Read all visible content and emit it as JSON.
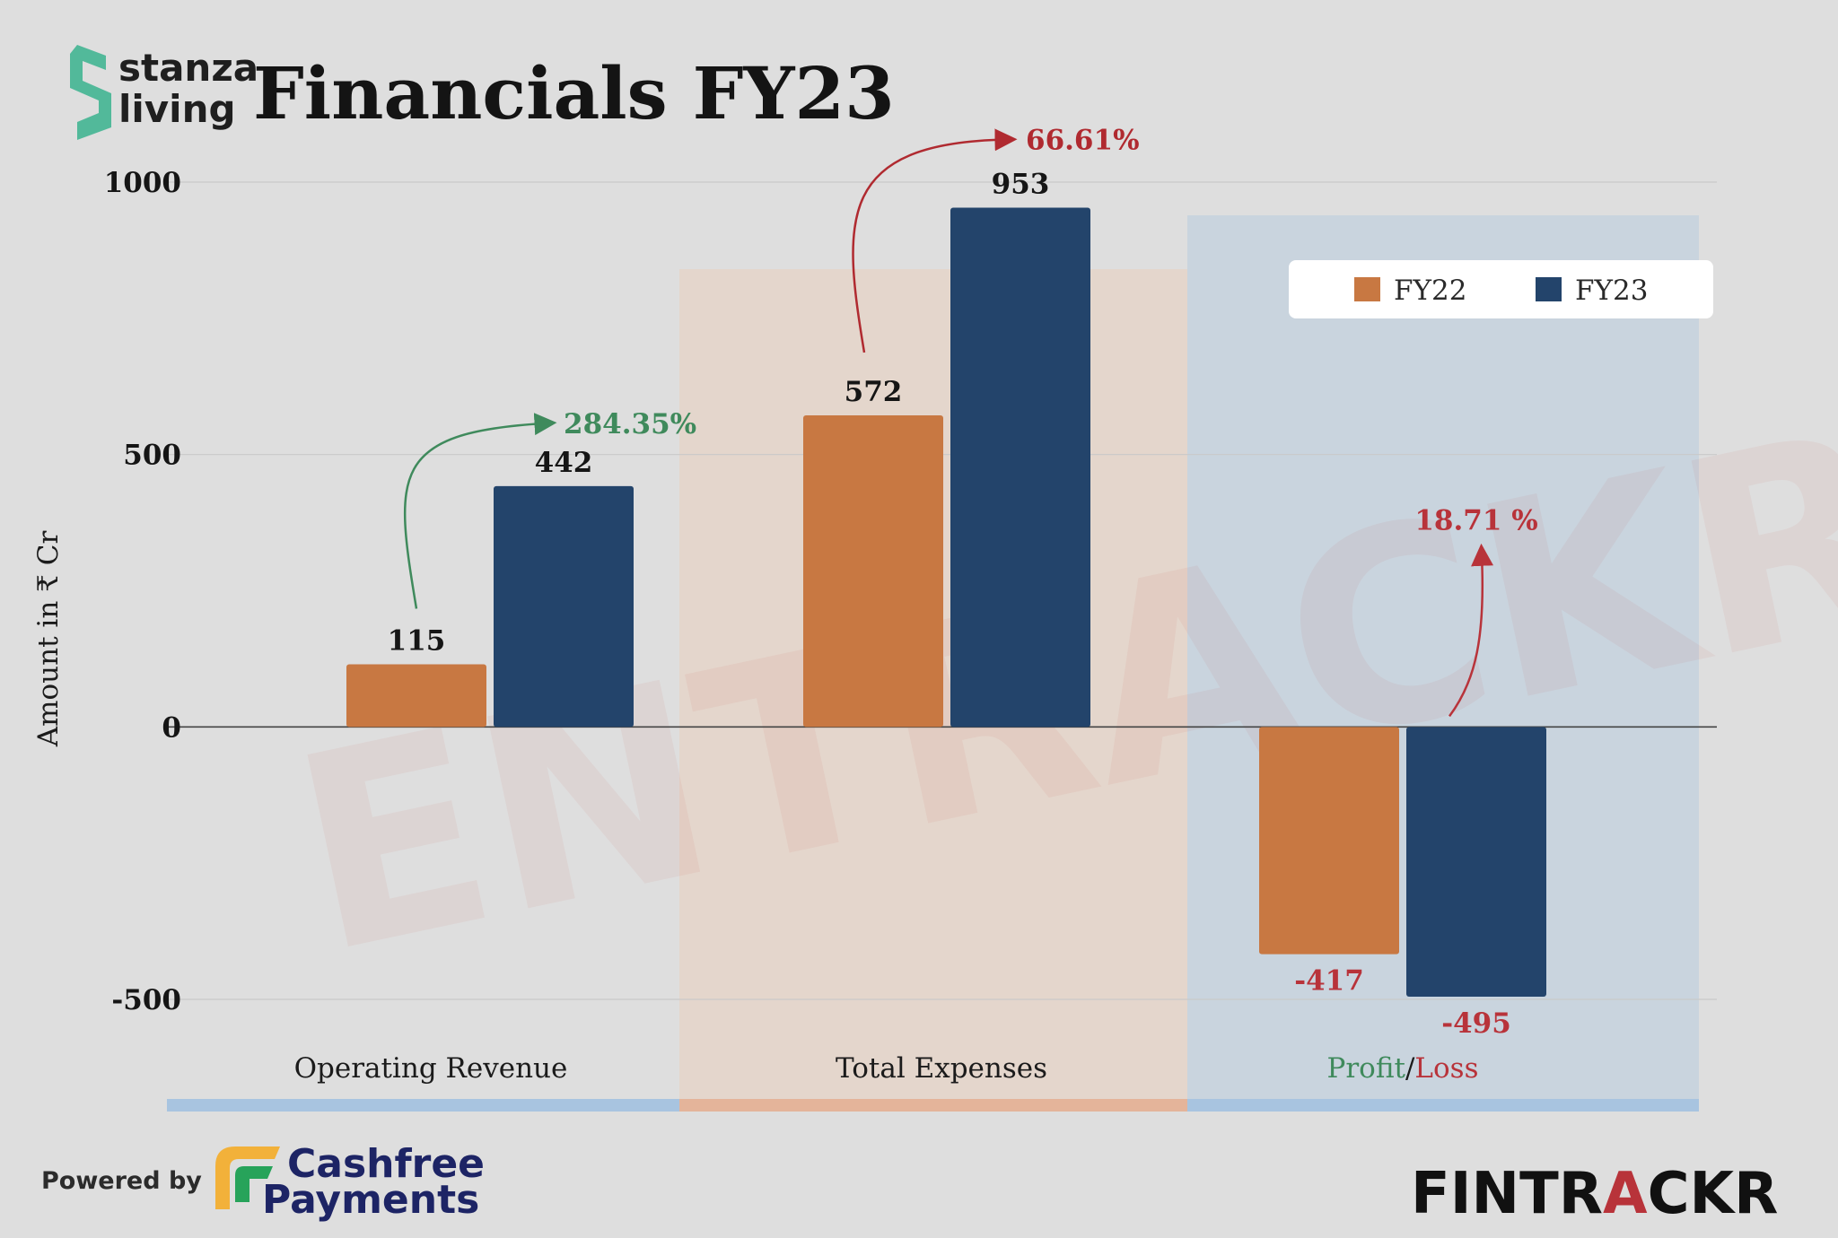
{
  "header": {
    "brand_line1": "stanza",
    "brand_line2": "living",
    "title": "Financials FY23"
  },
  "watermark": "ENTRACKR",
  "chart_data": {
    "type": "bar",
    "title": "Financials FY23",
    "xlabel": "",
    "ylabel": "Amount in ₹ Cr",
    "ylim": [
      -500,
      1000
    ],
    "yticks": [
      1000,
      500,
      0,
      -500
    ],
    "grid": true,
    "legend_position": "top-right",
    "categories": [
      "Operating Revenue",
      "Total Expenses",
      "Profit/Loss"
    ],
    "series": [
      {
        "name": "FY22",
        "color": "#c87842",
        "values": [
          115,
          572,
          -417
        ]
      },
      {
        "name": "FY23",
        "color": "#23446b",
        "values": [
          442,
          953,
          -495
        ]
      }
    ],
    "annotations": [
      {
        "category": "Operating Revenue",
        "text": "284.35%",
        "color": "#3f8a5c"
      },
      {
        "category": "Total Expenses",
        "text": "66.61%",
        "color": "#b02a30"
      },
      {
        "category": "Profit/Loss",
        "text": "18.71 %",
        "color": "#b8333a"
      }
    ],
    "category_label_parts": {
      "profit": "Profit",
      "separator": "/",
      "loss": "Loss",
      "profit_color": "#3f8a5c",
      "loss_color": "#b8333a"
    },
    "negative_label_color": "#b8333a"
  },
  "footer": {
    "powered_by": "Powered by",
    "partner_line1": "Cashfree",
    "partner_line2": "Payments",
    "brand_left": "FINTR",
    "brand_accent": "A",
    "brand_right": "CKR",
    "brand_dark_color": "#111111",
    "brand_accent_color": "#b8333a"
  }
}
